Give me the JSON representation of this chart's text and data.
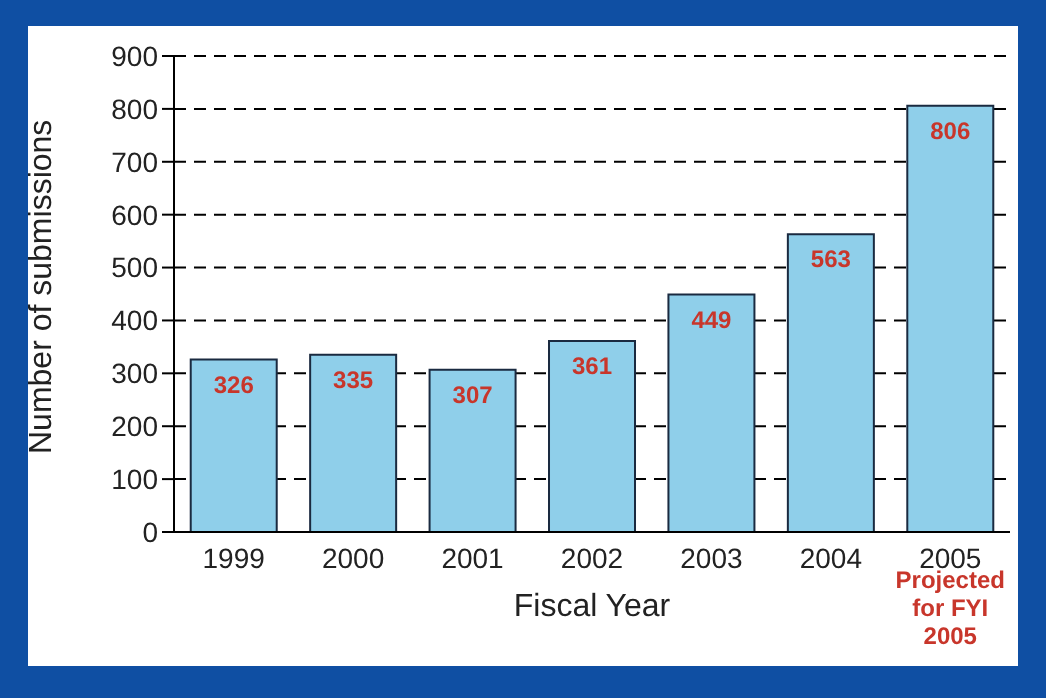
{
  "chart_data": {
    "type": "bar",
    "xlabel": "Fiscal Year",
    "ylabel": "Number of submissions",
    "categories": [
      "1999",
      "2000",
      "2001",
      "2002",
      "2003",
      "2004",
      "2005"
    ],
    "values": [
      326,
      335,
      307,
      361,
      449,
      563,
      806
    ],
    "color": "#8fcfea",
    "ylim": [
      0,
      900
    ],
    "yticks": [
      0,
      100,
      200,
      300,
      400,
      500,
      600,
      700,
      800,
      900
    ],
    "grid": "y",
    "data_labels": true,
    "annotations": [
      "Projected for FYI 2005"
    ]
  }
}
